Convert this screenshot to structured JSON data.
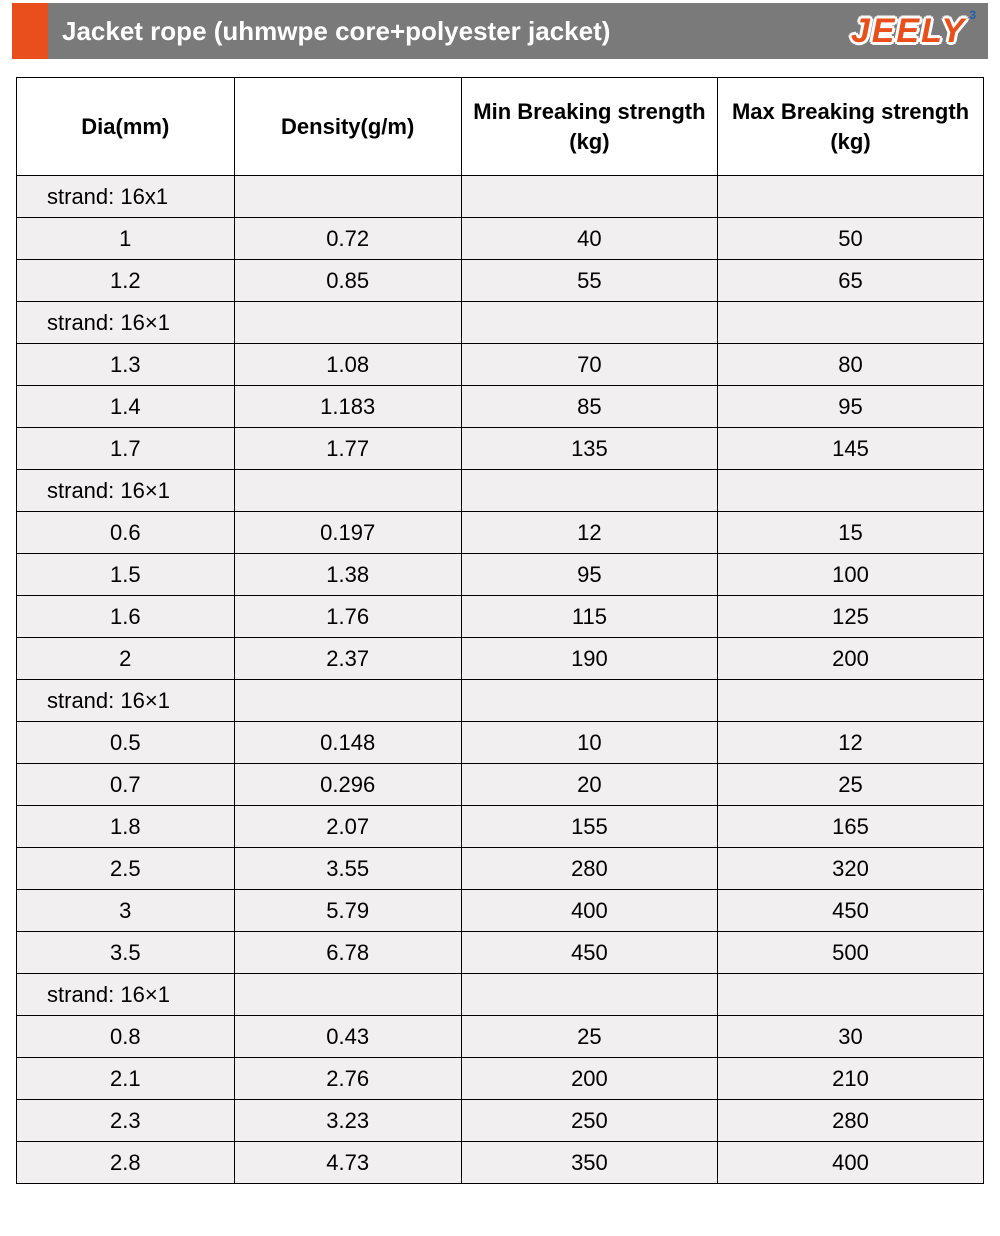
{
  "header": {
    "title": "Jacket rope (uhmwpe core+polyester jacket)",
    "brand": "JEELY",
    "accent_color": "#e94f1d",
    "bar_color": "#7a7a7a"
  },
  "table": {
    "type": "table",
    "columns": [
      "Dia(mm)",
      "Density(g/m)",
      "Min Breaking strength  (kg)",
      "Max Breaking strength  (kg)"
    ],
    "row_background": "#f2eff1",
    "border_color": "#000000",
    "header_fontsize": 22,
    "cell_fontsize": 22,
    "groups": [
      {
        "label": "strand:  16x1",
        "rows": [
          [
            "1",
            "0.72",
            "40",
            "50"
          ],
          [
            "1.2",
            "0.85",
            "55",
            "65"
          ]
        ]
      },
      {
        "label": "strand:  16×1",
        "rows": [
          [
            "1.3",
            "1.08",
            "70",
            "80"
          ],
          [
            "1.4",
            "1.183",
            "85",
            "95"
          ],
          [
            "1.7",
            "1.77",
            "135",
            "145"
          ]
        ]
      },
      {
        "label": "strand:  16×1",
        "rows": [
          [
            "0.6",
            "0.197",
            "12",
            "15"
          ],
          [
            "1.5",
            "1.38",
            "95",
            "100"
          ],
          [
            "1.6",
            "1.76",
            "115",
            "125"
          ],
          [
            "2",
            "2.37",
            "190",
            "200"
          ]
        ]
      },
      {
        "label": "strand:  16×1",
        "rows": [
          [
            "0.5",
            "0.148",
            "10",
            "12"
          ],
          [
            "0.7",
            "0.296",
            "20",
            "25"
          ],
          [
            "1.8",
            "2.07",
            "155",
            "165"
          ],
          [
            "2.5",
            "3.55",
            "280",
            "320"
          ],
          [
            "3",
            "5.79",
            "400",
            "450"
          ],
          [
            "3.5",
            "6.78",
            "450",
            "500"
          ]
        ]
      },
      {
        "label": "strand:  16×1",
        "rows": [
          [
            "0.8",
            "0.43",
            "25",
            "30"
          ],
          [
            "2.1",
            "2.76",
            "200",
            "210"
          ],
          [
            "2.3",
            "3.23",
            "250",
            "280"
          ],
          [
            "2.8",
            "4.73",
            "350",
            "400"
          ]
        ]
      }
    ]
  }
}
